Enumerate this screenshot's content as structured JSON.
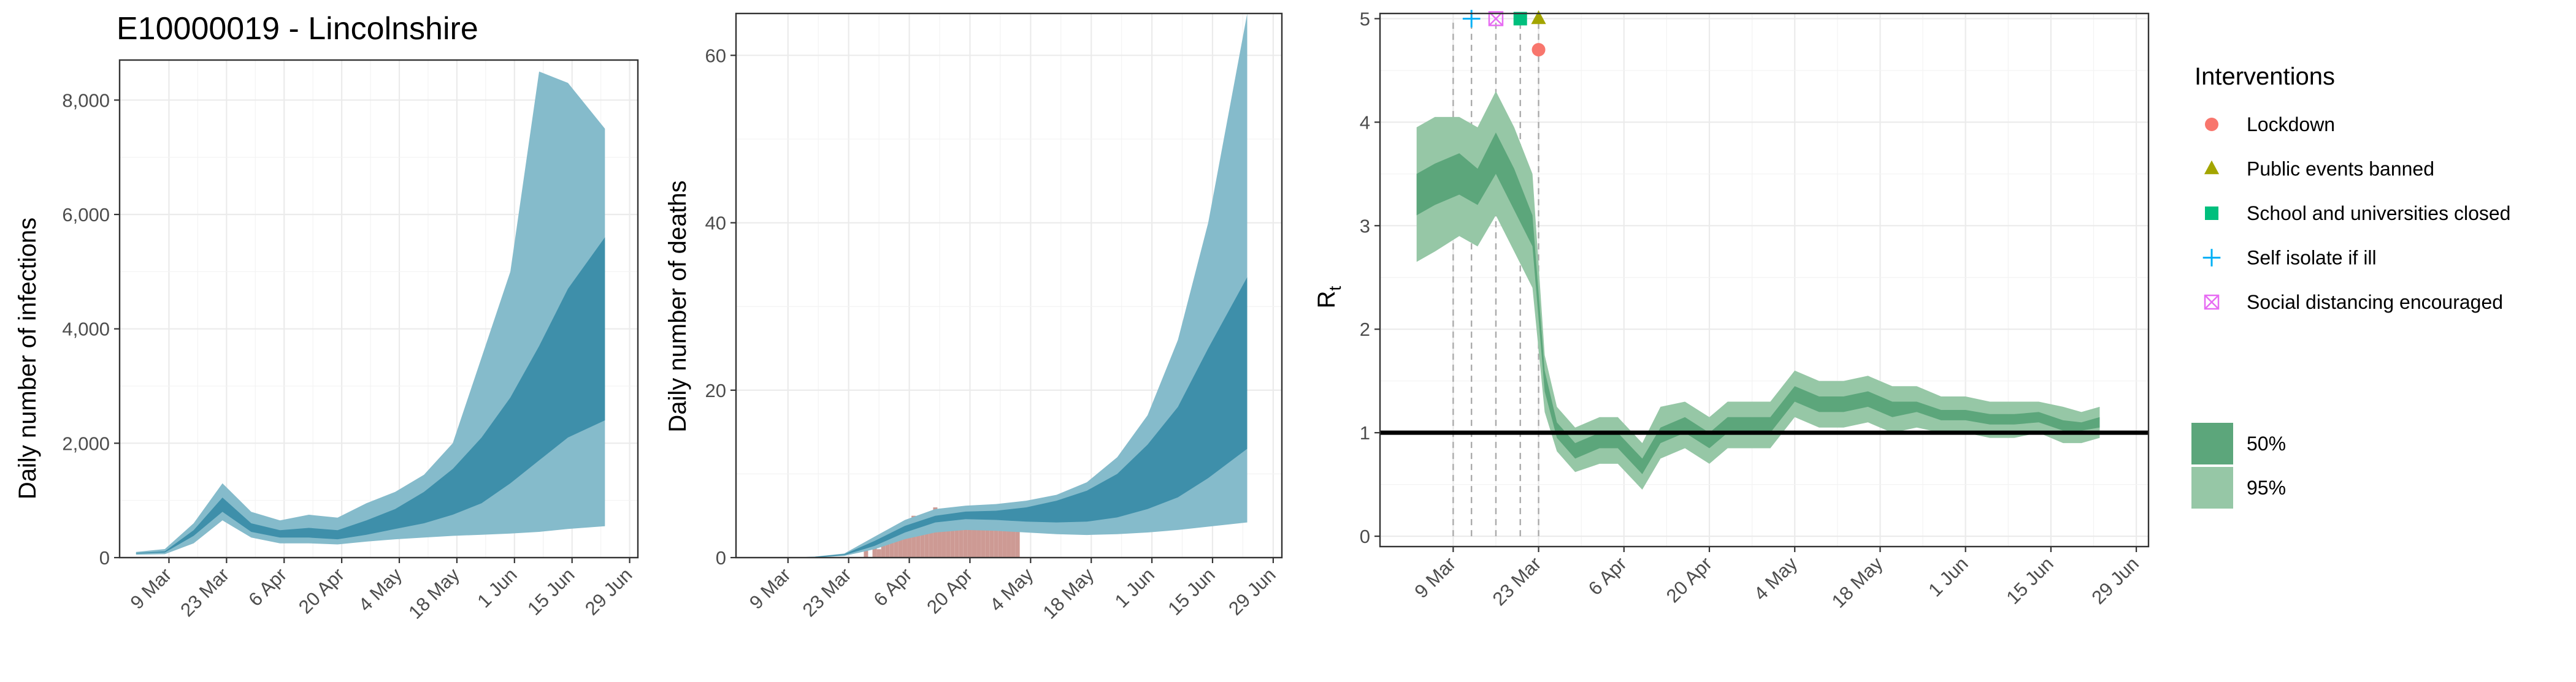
{
  "figure": {
    "title": "E10000019 - Lincolnshire",
    "colors": {
      "infections_95": "#85BBCB",
      "infections_50": "#3E8FAA",
      "deaths_observed": "#CD9A94",
      "rt_95": "#96C7A6",
      "rt_50": "#5CA67B",
      "rt_threshold": "#000000",
      "lockdown": "#F8766D",
      "public_events": "#A3A500",
      "schools": "#00BF7D",
      "self_isolate": "#00B0F6",
      "social_distancing": "#E76BF3"
    }
  },
  "chart_data": [
    {
      "type": "area",
      "ylabel": "Daily number of infections",
      "ylim": [
        0,
        8700
      ],
      "yticks": [
        0,
        2000,
        4000,
        6000,
        8000
      ],
      "ytick_labels": [
        "0",
        "2,000",
        "4,000",
        "6,000",
        "8,000"
      ],
      "xtick_labels": [
        "9 Mar",
        "23 Mar",
        "6 Apr",
        "20 Apr",
        "4 May",
        "18 May",
        "1 Jun",
        "15 Jun",
        "29 Jun"
      ],
      "grid": true,
      "series": [
        {
          "band": "95%",
          "x": [
            "2020-03-01",
            "2020-03-08",
            "2020-03-15",
            "2020-03-22",
            "2020-03-29",
            "2020-04-05",
            "2020-04-12",
            "2020-04-19",
            "2020-04-26",
            "2020-05-03",
            "2020-05-10",
            "2020-05-17",
            "2020-05-24",
            "2020-05-31",
            "2020-06-07",
            "2020-06-14",
            "2020-06-23"
          ],
          "lower": [
            50,
            60,
            250,
            650,
            350,
            250,
            250,
            230,
            280,
            320,
            350,
            380,
            400,
            420,
            450,
            500,
            550
          ],
          "upper": [
            100,
            150,
            600,
            1300,
            800,
            650,
            750,
            700,
            950,
            1150,
            1450,
            2000,
            3500,
            5000,
            8500,
            8300,
            7500
          ]
        },
        {
          "band": "50%",
          "x": [
            "2020-03-01",
            "2020-03-08",
            "2020-03-15",
            "2020-03-22",
            "2020-03-29",
            "2020-04-05",
            "2020-04-12",
            "2020-04-19",
            "2020-04-26",
            "2020-05-03",
            "2020-05-10",
            "2020-05-17",
            "2020-05-24",
            "2020-05-31",
            "2020-06-07",
            "2020-06-14",
            "2020-06-23"
          ],
          "lower": [
            70,
            90,
            380,
            800,
            450,
            350,
            350,
            320,
            400,
            500,
            600,
            750,
            950,
            1300,
            1700,
            2100,
            2400
          ],
          "upper": [
            80,
            110,
            480,
            1050,
            600,
            480,
            520,
            480,
            650,
            850,
            1150,
            1550,
            2100,
            2800,
            3700,
            4700,
            5600
          ]
        }
      ]
    },
    {
      "type": "area",
      "ylabel": "Daily number of deaths",
      "ylim": [
        0,
        65
      ],
      "yticks": [
        0,
        20,
        40,
        60
      ],
      "ytick_labels": [
        "0",
        "20",
        "40",
        "60"
      ],
      "xtick_labels": [
        "9 Mar",
        "23 Mar",
        "6 Apr",
        "20 Apr",
        "4 May",
        "18 May",
        "1 Jun",
        "15 Jun",
        "29 Jun"
      ],
      "grid": true,
      "series": [
        {
          "band": "95%",
          "x": [
            "2020-03-01",
            "2020-03-08",
            "2020-03-15",
            "2020-03-22",
            "2020-03-29",
            "2020-04-05",
            "2020-04-12",
            "2020-04-19",
            "2020-04-26",
            "2020-05-03",
            "2020-05-10",
            "2020-05-17",
            "2020-05-24",
            "2020-05-31",
            "2020-06-07",
            "2020-06-14",
            "2020-06-23"
          ],
          "lower": [
            0,
            0,
            0,
            0.2,
            1.0,
            2.2,
            3.0,
            3.3,
            3.2,
            3.0,
            2.8,
            2.7,
            2.8,
            3.0,
            3.3,
            3.7,
            4.2
          ],
          "upper": [
            0,
            0,
            0.1,
            0.5,
            2.5,
            4.5,
            5.8,
            6.2,
            6.4,
            6.8,
            7.5,
            9.0,
            12.0,
            17.0,
            26.0,
            40.0,
            65.0
          ]
        },
        {
          "band": "50%",
          "x": [
            "2020-03-01",
            "2020-03-08",
            "2020-03-15",
            "2020-03-22",
            "2020-03-29",
            "2020-04-05",
            "2020-04-12",
            "2020-04-19",
            "2020-04-26",
            "2020-05-03",
            "2020-05-10",
            "2020-05-17",
            "2020-05-24",
            "2020-05-31",
            "2020-06-07",
            "2020-06-14",
            "2020-06-23"
          ],
          "lower": [
            0,
            0,
            0,
            0.3,
            1.4,
            3.0,
            4.2,
            4.6,
            4.5,
            4.3,
            4.2,
            4.3,
            4.8,
            5.8,
            7.2,
            9.5,
            13.0
          ],
          "upper": [
            0,
            0,
            0.1,
            0.4,
            2.0,
            3.8,
            5.0,
            5.5,
            5.6,
            6.0,
            6.8,
            8.0,
            10.0,
            13.5,
            18.0,
            25.0,
            33.5
          ]
        }
      ],
      "observed_deaths": {
        "x": [
          "2020-03-27",
          "2020-03-28",
          "2020-03-29",
          "2020-03-30",
          "2020-03-31",
          "2020-04-01",
          "2020-04-02",
          "2020-04-03",
          "2020-04-04",
          "2020-04-05",
          "2020-04-06",
          "2020-04-07",
          "2020-04-08",
          "2020-04-09",
          "2020-04-10",
          "2020-04-11",
          "2020-04-12",
          "2020-04-13",
          "2020-04-14",
          "2020-04-15",
          "2020-04-16",
          "2020-04-17",
          "2020-04-18",
          "2020-04-19",
          "2020-04-20",
          "2020-04-21",
          "2020-04-22",
          "2020-04-23",
          "2020-04-24",
          "2020-04-25",
          "2020-04-26",
          "2020-04-27",
          "2020-04-28",
          "2020-04-29",
          "2020-04-30",
          "2020-05-01"
        ],
        "values": [
          1,
          0,
          2,
          1,
          2,
          3,
          2,
          3,
          4,
          3,
          4,
          5,
          4,
          5,
          5,
          4,
          6,
          5,
          4,
          5,
          6,
          5,
          4,
          6,
          5,
          5,
          4,
          5,
          6,
          4,
          5,
          5,
          4,
          5,
          4,
          5
        ]
      }
    },
    {
      "type": "line",
      "ylabel": "Rt",
      "ylim": [
        -0.1,
        5.05
      ],
      "yticks": [
        0,
        1,
        2,
        3,
        4,
        5
      ],
      "ytick_labels": [
        "0",
        "1",
        "2",
        "3",
        "4",
        "5"
      ],
      "xtick_labels": [
        "9 Mar",
        "23 Mar",
        "6 Apr",
        "20 Apr",
        "4 May",
        "18 May",
        "1 Jun",
        "15 Jun",
        "29 Jun"
      ],
      "grid": true,
      "threshold": 1,
      "series": [
        {
          "band": "95%",
          "x": [
            "2020-03-03",
            "2020-03-06",
            "2020-03-10",
            "2020-03-13",
            "2020-03-16",
            "2020-03-19",
            "2020-03-22",
            "2020-03-24",
            "2020-03-26",
            "2020-03-29",
            "2020-04-02",
            "2020-04-05",
            "2020-04-09",
            "2020-04-12",
            "2020-04-16",
            "2020-04-20",
            "2020-04-23",
            "2020-04-27",
            "2020-04-30",
            "2020-05-04",
            "2020-05-08",
            "2020-05-12",
            "2020-05-16",
            "2020-05-20",
            "2020-05-24",
            "2020-05-28",
            "2020-06-01",
            "2020-06-05",
            "2020-06-09",
            "2020-06-13",
            "2020-06-17",
            "2020-06-20",
            "2020-06-23"
          ],
          "lower": [
            2.65,
            2.75,
            2.9,
            2.8,
            3.1,
            2.75,
            2.4,
            1.2,
            0.82,
            0.62,
            0.7,
            0.7,
            0.45,
            0.75,
            0.85,
            0.7,
            0.85,
            0.85,
            0.85,
            1.15,
            1.05,
            1.05,
            1.1,
            1.0,
            1.05,
            1.0,
            1.0,
            0.95,
            0.95,
            1.0,
            0.9,
            0.9,
            0.95
          ],
          "upper": [
            3.95,
            4.05,
            4.05,
            3.95,
            4.3,
            3.95,
            3.5,
            1.75,
            1.25,
            1.05,
            1.15,
            1.15,
            0.9,
            1.25,
            1.3,
            1.15,
            1.3,
            1.3,
            1.3,
            1.6,
            1.5,
            1.5,
            1.55,
            1.45,
            1.45,
            1.35,
            1.35,
            1.3,
            1.3,
            1.3,
            1.25,
            1.2,
            1.25
          ]
        },
        {
          "band": "50%",
          "x": [
            "2020-03-03",
            "2020-03-06",
            "2020-03-10",
            "2020-03-13",
            "2020-03-16",
            "2020-03-19",
            "2020-03-22",
            "2020-03-24",
            "2020-03-26",
            "2020-03-29",
            "2020-04-02",
            "2020-04-05",
            "2020-04-09",
            "2020-04-12",
            "2020-04-16",
            "2020-04-20",
            "2020-04-23",
            "2020-04-27",
            "2020-04-30",
            "2020-05-04",
            "2020-05-08",
            "2020-05-12",
            "2020-05-16",
            "2020-05-20",
            "2020-05-24",
            "2020-05-28",
            "2020-06-01",
            "2020-06-05",
            "2020-06-09",
            "2020-06-13",
            "2020-06-17",
            "2020-06-20",
            "2020-06-23"
          ],
          "lower": [
            3.1,
            3.2,
            3.3,
            3.2,
            3.5,
            3.15,
            2.8,
            1.4,
            0.95,
            0.75,
            0.85,
            0.85,
            0.6,
            0.9,
            1.0,
            0.85,
            1.0,
            1.0,
            1.0,
            1.3,
            1.2,
            1.2,
            1.25,
            1.15,
            1.2,
            1.12,
            1.12,
            1.08,
            1.08,
            1.1,
            1.02,
            1.02,
            1.05
          ],
          "upper": [
            3.5,
            3.6,
            3.7,
            3.55,
            3.9,
            3.55,
            3.1,
            1.6,
            1.1,
            0.9,
            1.0,
            1.0,
            0.75,
            1.05,
            1.15,
            1.0,
            1.15,
            1.15,
            1.15,
            1.45,
            1.35,
            1.35,
            1.4,
            1.3,
            1.3,
            1.22,
            1.22,
            1.18,
            1.18,
            1.2,
            1.12,
            1.1,
            1.15
          ]
        }
      ],
      "interventions": [
        {
          "name": "Lockdown",
          "date": "2020-03-23",
          "shape": "circle",
          "value": 4.7
        },
        {
          "name": "Public events banned",
          "date": "2020-03-23",
          "shape": "triangle",
          "value": 5.0
        },
        {
          "name": "School and universities closed",
          "date": "2020-03-20",
          "shape": "square",
          "value": 5.0
        },
        {
          "name": "Self isolate if ill",
          "date": "2020-03-12",
          "shape": "plus",
          "value": 5.0
        },
        {
          "name": "Social distancing encouraged",
          "date": "2020-03-16",
          "shape": "boxcross",
          "value": 5.0
        }
      ],
      "extra_dashed_line_date": "2020-03-09"
    }
  ],
  "legend": {
    "title": "Interventions",
    "items": [
      {
        "label": "Lockdown",
        "shape": "circle"
      },
      {
        "label": "Public events banned",
        "shape": "triangle"
      },
      {
        "label": "School and universities closed",
        "shape": "square"
      },
      {
        "label": "Self isolate if ill",
        "shape": "plus"
      },
      {
        "label": "Social distancing encouraged",
        "shape": "boxcross"
      }
    ],
    "bands": [
      {
        "label": "50%"
      },
      {
        "label": "95%"
      }
    ]
  }
}
